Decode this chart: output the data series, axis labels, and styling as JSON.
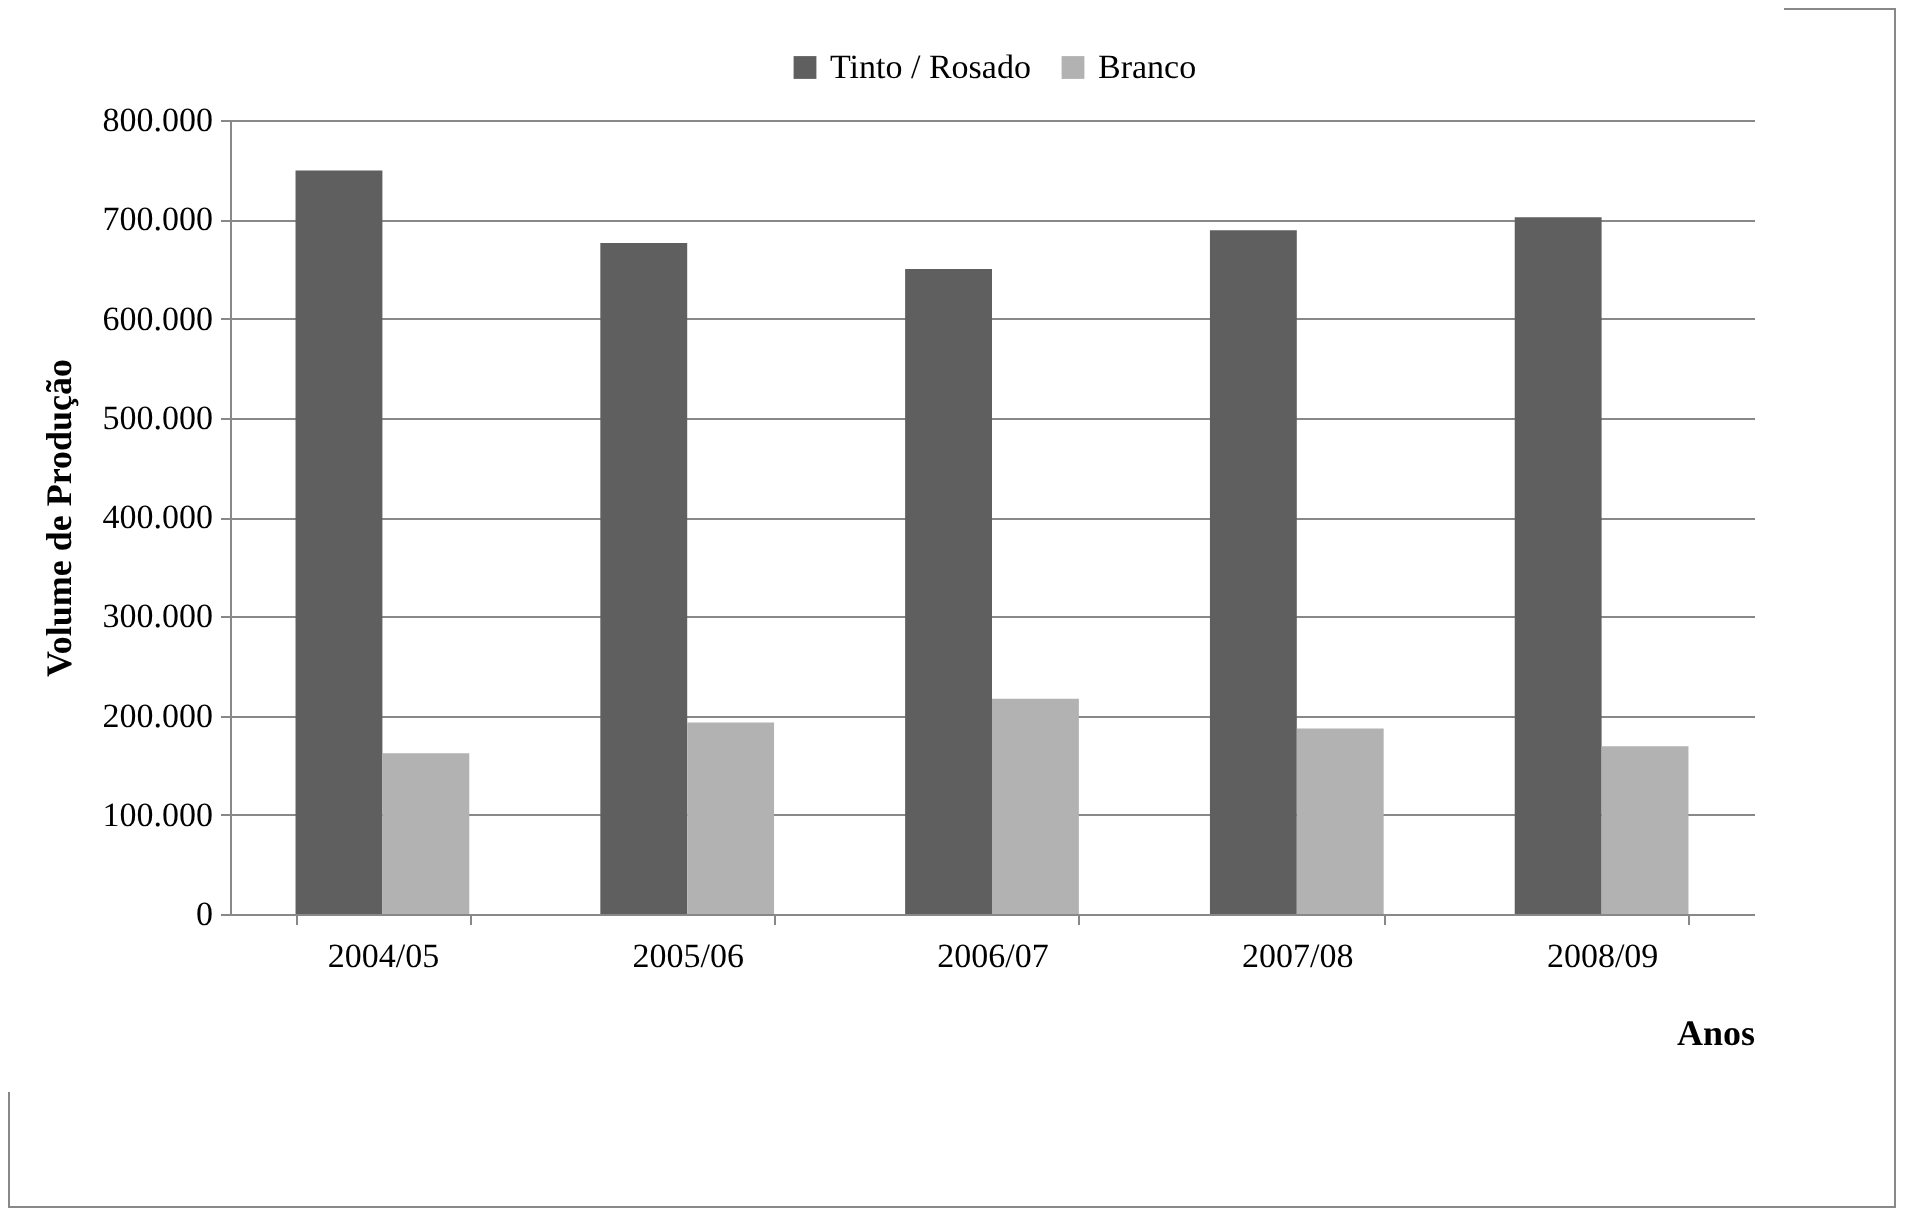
{
  "chart_data": {
    "type": "bar",
    "xlabel": "Anos",
    "ylabel": "Volume de Produção",
    "categories": [
      "2004/05",
      "2005/06",
      "2006/07",
      "2007/08",
      "2008/09"
    ],
    "series": [
      {
        "name": "Tinto / Rosado",
        "color": "#5f5f5f",
        "values": [
          749000,
          676000,
          650000,
          689000,
          702000
        ]
      },
      {
        "name": "Branco",
        "color": "#b2b2b2",
        "values": [
          162000,
          193000,
          217000,
          187000,
          169000
        ]
      }
    ],
    "ylim": [
      0,
      800000
    ],
    "yticks": [
      {
        "value": 0,
        "label": "0"
      },
      {
        "value": 100000,
        "label": "100.000"
      },
      {
        "value": 200000,
        "label": "200.000"
      },
      {
        "value": 300000,
        "label": "300.000"
      },
      {
        "value": 400000,
        "label": "400.000"
      },
      {
        "value": 500000,
        "label": "500.000"
      },
      {
        "value": 600000,
        "label": "600.000"
      },
      {
        "value": 700000,
        "label": "700.000"
      },
      {
        "value": 800000,
        "label": "800.000"
      }
    ],
    "grid": "y",
    "legend": "top"
  }
}
